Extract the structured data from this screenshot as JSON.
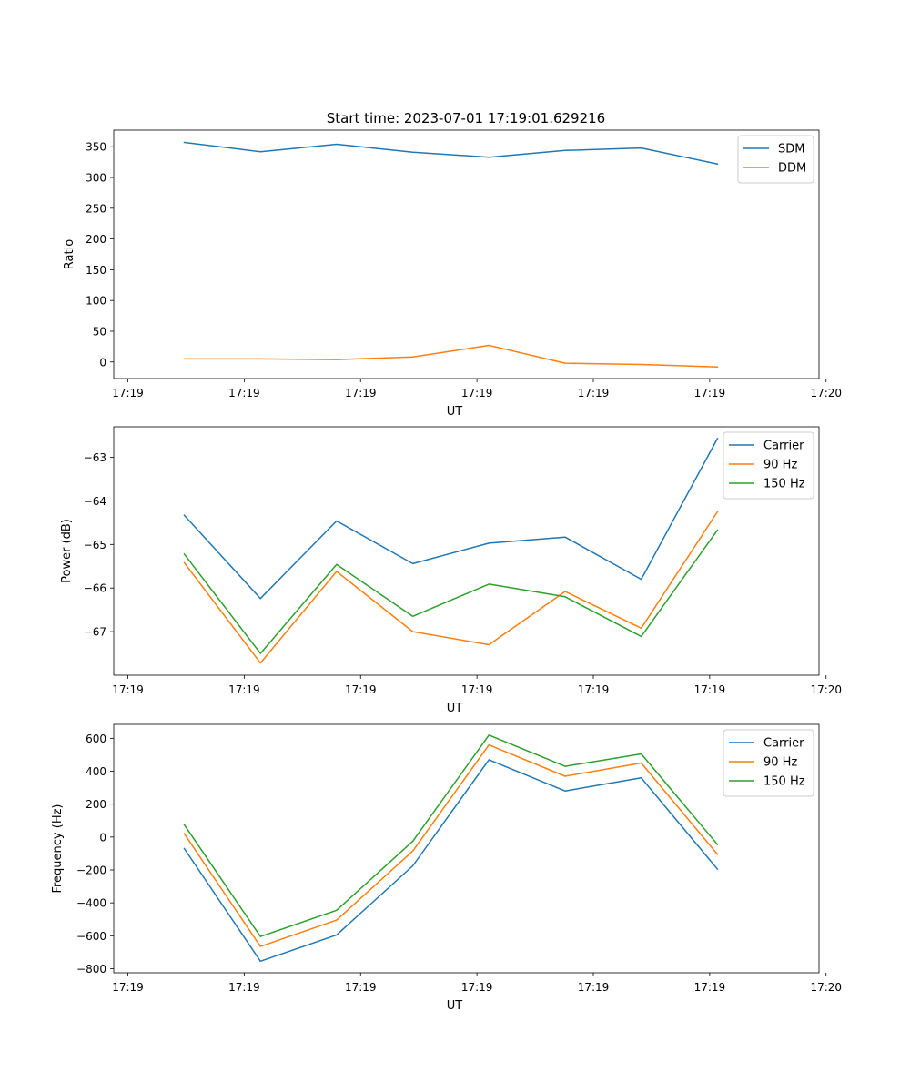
{
  "figure_title": "Start time: 2023-07-01 17:19:01.629216",
  "colors": {
    "blue": "#1f77b4",
    "orange": "#ff7f0e",
    "green": "#2ca02c",
    "axis": "#000000"
  },
  "chart_data": [
    {
      "type": "line",
      "title": "Start time: 2023-07-01 17:19:01.629216",
      "xlabel": "UT",
      "ylabel": "Ratio",
      "x_ticks": [
        "17:19",
        "17:19",
        "17:19",
        "17:19",
        "17:19",
        "17:19",
        "17:20"
      ],
      "xlim": [
        0,
        100
      ],
      "x_tick_positions": [
        2,
        18.5,
        35,
        51.5,
        68,
        84.5,
        101
      ],
      "ylim": [
        -27,
        377
      ],
      "y_ticks": [
        0,
        50,
        100,
        150,
        200,
        250,
        300,
        350
      ],
      "y_tick_labels": [
        "0",
        "50",
        "100",
        "150",
        "200",
        "250",
        "300",
        "350"
      ],
      "legend_position": "top-right",
      "x": [
        10,
        20.8,
        31.6,
        42.4,
        53.2,
        64,
        74.8,
        85.6
      ],
      "series": [
        {
          "name": "SDM",
          "color": "#1f77b4",
          "values": [
            357,
            342,
            354,
            341,
            333,
            344,
            348,
            322
          ]
        },
        {
          "name": "DDM",
          "color": "#ff7f0e",
          "values": [
            5,
            5,
            4,
            8,
            27,
            -2,
            -4,
            -8
          ]
        }
      ]
    },
    {
      "type": "line",
      "title": "",
      "xlabel": "UT",
      "ylabel": "Power (dB)",
      "x_ticks": [
        "17:19",
        "17:19",
        "17:19",
        "17:19",
        "17:19",
        "17:19",
        "17:20"
      ],
      "xlim": [
        0,
        100
      ],
      "x_tick_positions": [
        2,
        18.5,
        35,
        51.5,
        68,
        84.5,
        101
      ],
      "ylim": [
        -68.0,
        -62.3
      ],
      "y_ticks": [
        -67,
        -66,
        -65,
        -64,
        -63
      ],
      "y_tick_labels": [
        "−67",
        "−66",
        "−65",
        "−64",
        "−63"
      ],
      "legend_position": "top-right",
      "x": [
        10,
        20.8,
        31.6,
        42.4,
        53.2,
        64,
        74.8,
        85.6
      ],
      "series": [
        {
          "name": "Carrier",
          "color": "#1f77b4",
          "values": [
            -64.33,
            -66.24,
            -64.46,
            -65.44,
            -64.97,
            -64.83,
            -65.8,
            -62.57
          ]
        },
        {
          "name": "90 Hz",
          "color": "#ff7f0e",
          "values": [
            -65.42,
            -67.72,
            -65.62,
            -67.0,
            -67.3,
            -66.08,
            -66.92,
            -64.25
          ]
        },
        {
          "name": "150 Hz",
          "color": "#2ca02c",
          "values": [
            -65.22,
            -67.5,
            -65.46,
            -66.65,
            -65.91,
            -66.2,
            -67.11,
            -64.67
          ]
        }
      ]
    },
    {
      "type": "line",
      "title": "",
      "xlabel": "UT",
      "ylabel": "Frequency (Hz)",
      "x_ticks": [
        "17:19",
        "17:19",
        "17:19",
        "17:19",
        "17:19",
        "17:19",
        "17:20"
      ],
      "xlim": [
        0,
        100
      ],
      "x_tick_positions": [
        2,
        18.5,
        35,
        51.5,
        68,
        84.5,
        101
      ],
      "ylim": [
        -825,
        685
      ],
      "y_ticks": [
        -800,
        -600,
        -400,
        -200,
        0,
        200,
        400,
        600
      ],
      "y_tick_labels": [
        "−800",
        "−600",
        "−400",
        "−200",
        "0",
        "200",
        "400",
        "600"
      ],
      "legend_position": "top-right",
      "x": [
        10,
        20.8,
        31.6,
        42.4,
        53.2,
        64,
        74.8,
        85.6
      ],
      "series": [
        {
          "name": "Carrier",
          "color": "#1f77b4",
          "values": [
            -70,
            -755,
            -595,
            -175,
            470,
            280,
            360,
            -195
          ]
        },
        {
          "name": "90 Hz",
          "color": "#ff7f0e",
          "values": [
            20,
            -665,
            -505,
            -85,
            560,
            370,
            450,
            -105
          ]
        },
        {
          "name": "150 Hz",
          "color": "#2ca02c",
          "values": [
            75,
            -605,
            -445,
            -25,
            620,
            430,
            505,
            -45
          ]
        }
      ]
    }
  ]
}
